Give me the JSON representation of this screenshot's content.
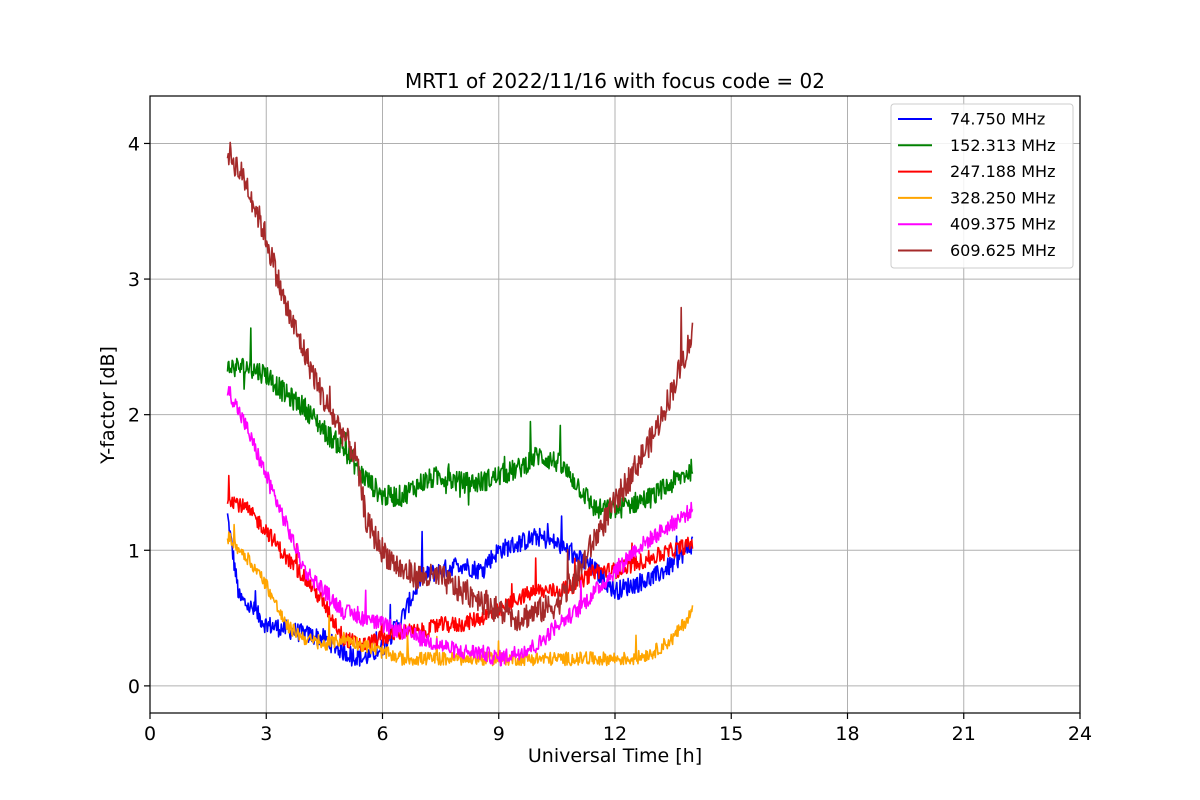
{
  "chart_data": {
    "type": "line",
    "title": "MRT1 of 2022/11/16 with focus code = 02",
    "xlabel": "Universal Time [h]",
    "ylabel": "Y-factor [dB]",
    "xlim": [
      0,
      24
    ],
    "ylim": [
      -0.2,
      4.35
    ],
    "xticks": [
      0,
      3,
      6,
      9,
      12,
      15,
      18,
      21,
      24
    ],
    "yticks": [
      0,
      1,
      2,
      3,
      4
    ],
    "grid": true,
    "legend_position": "top-right",
    "series": [
      {
        "name": " 74.750 MHz",
        "color": "#0000ff",
        "noise": 0.07,
        "x": [
          2.0,
          2.3,
          2.7,
          3.0,
          3.5,
          4.0,
          4.5,
          5.0,
          5.5,
          6.0,
          6.5,
          7.0,
          7.5,
          8.0,
          8.5,
          9.0,
          9.5,
          10.0,
          10.5,
          11.0,
          11.5,
          12.0,
          12.5,
          13.0,
          13.5,
          14.0
        ],
        "y": [
          1.25,
          0.65,
          0.55,
          0.45,
          0.42,
          0.38,
          0.35,
          0.25,
          0.2,
          0.28,
          0.5,
          0.8,
          0.85,
          0.9,
          0.85,
          1.0,
          1.05,
          1.1,
          1.05,
          0.95,
          0.85,
          0.7,
          0.75,
          0.8,
          0.9,
          1.05
        ]
      },
      {
        "name": "152.313 MHz",
        "color": "#008000",
        "noise": 0.08,
        "x": [
          2.0,
          2.5,
          3.0,
          3.5,
          4.0,
          4.3,
          4.6,
          5.0,
          5.5,
          6.0,
          6.5,
          7.0,
          7.5,
          8.0,
          8.5,
          9.0,
          9.5,
          10.0,
          10.5,
          11.0,
          11.5,
          12.0,
          12.5,
          13.0,
          13.5,
          14.0
        ],
        "y": [
          2.35,
          2.35,
          2.3,
          2.15,
          2.05,
          1.95,
          1.85,
          1.75,
          1.55,
          1.4,
          1.4,
          1.5,
          1.55,
          1.5,
          1.5,
          1.55,
          1.6,
          1.7,
          1.65,
          1.5,
          1.3,
          1.3,
          1.35,
          1.4,
          1.5,
          1.6
        ]
      },
      {
        "name": "247.188 MHz",
        "color": "#ff0000",
        "noise": 0.06,
        "x": [
          2.0,
          2.5,
          3.0,
          3.5,
          4.0,
          4.5,
          5.0,
          5.5,
          6.0,
          6.5,
          7.0,
          7.5,
          8.0,
          8.5,
          9.0,
          9.5,
          10.0,
          10.5,
          11.0,
          11.5,
          12.0,
          12.5,
          13.0,
          13.5,
          14.0
        ],
        "y": [
          1.4,
          1.3,
          1.15,
          0.95,
          0.8,
          0.6,
          0.35,
          0.3,
          0.35,
          0.4,
          0.4,
          0.45,
          0.45,
          0.5,
          0.55,
          0.65,
          0.7,
          0.7,
          0.75,
          0.85,
          0.85,
          0.9,
          0.95,
          1.0,
          1.05
        ]
      },
      {
        "name": "328.250 MHz",
        "color": "#ffa500",
        "noise": 0.05,
        "x": [
          2.0,
          2.5,
          3.0,
          3.5,
          4.0,
          4.5,
          5.0,
          5.5,
          6.0,
          6.5,
          7.0,
          7.5,
          8.0,
          8.5,
          9.0,
          9.5,
          10.0,
          10.5,
          11.0,
          11.5,
          12.0,
          12.5,
          13.0,
          13.5,
          14.0
        ],
        "y": [
          1.1,
          0.95,
          0.75,
          0.45,
          0.35,
          0.3,
          0.35,
          0.3,
          0.25,
          0.2,
          0.2,
          0.2,
          0.2,
          0.2,
          0.2,
          0.2,
          0.2,
          0.2,
          0.2,
          0.2,
          0.2,
          0.2,
          0.25,
          0.35,
          0.55
        ]
      },
      {
        "name": "409.375 MHz",
        "color": "#ff00ff",
        "noise": 0.06,
        "x": [
          2.0,
          2.5,
          3.0,
          3.5,
          4.0,
          4.5,
          5.0,
          5.5,
          6.0,
          6.5,
          7.0,
          7.5,
          8.0,
          8.5,
          9.0,
          9.5,
          10.0,
          10.5,
          11.0,
          11.5,
          12.0,
          12.5,
          13.0,
          13.5,
          14.0
        ],
        "y": [
          2.2,
          1.9,
          1.55,
          1.2,
          0.85,
          0.7,
          0.55,
          0.5,
          0.45,
          0.4,
          0.35,
          0.3,
          0.25,
          0.25,
          0.2,
          0.25,
          0.3,
          0.45,
          0.55,
          0.7,
          0.85,
          1.0,
          1.1,
          1.2,
          1.3
        ]
      },
      {
        "name": "609.625 MHz",
        "color": "#a52a2a",
        "noise": 0.1,
        "x": [
          2.0,
          2.5,
          3.0,
          3.5,
          4.0,
          4.5,
          5.0,
          5.3,
          5.6,
          6.0,
          6.5,
          7.0,
          7.5,
          8.0,
          8.5,
          9.0,
          9.5,
          10.0,
          10.5,
          11.0,
          11.5,
          12.0,
          12.5,
          13.0,
          13.5,
          14.0
        ],
        "y": [
          3.95,
          3.7,
          3.3,
          2.8,
          2.45,
          2.1,
          1.85,
          1.7,
          1.2,
          1.0,
          0.85,
          0.8,
          0.8,
          0.7,
          0.65,
          0.55,
          0.5,
          0.55,
          0.6,
          0.8,
          1.1,
          1.35,
          1.6,
          1.85,
          2.2,
          2.6
        ]
      }
    ]
  }
}
